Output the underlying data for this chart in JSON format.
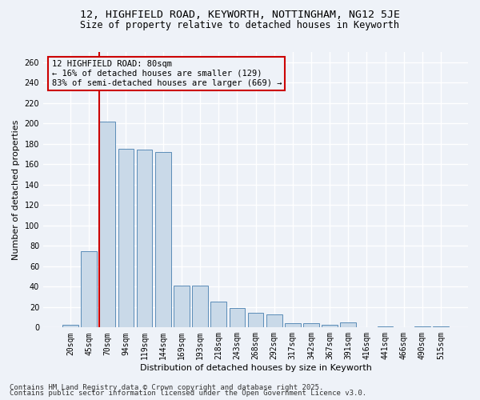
{
  "title_line1": "12, HIGHFIELD ROAD, KEYWORTH, NOTTINGHAM, NG12 5JE",
  "title_line2": "Size of property relative to detached houses in Keyworth",
  "xlabel": "Distribution of detached houses by size in Keyworth",
  "ylabel": "Number of detached properties",
  "bar_labels": [
    "20sqm",
    "45sqm",
    "70sqm",
    "94sqm",
    "119sqm",
    "144sqm",
    "169sqm",
    "193sqm",
    "218sqm",
    "243sqm",
    "268sqm",
    "292sqm",
    "317sqm",
    "342sqm",
    "367sqm",
    "391sqm",
    "416sqm",
    "441sqm",
    "466sqm",
    "490sqm",
    "515sqm"
  ],
  "bar_values": [
    3,
    75,
    202,
    175,
    174,
    172,
    41,
    41,
    25,
    19,
    14,
    13,
    4,
    4,
    3,
    5,
    0,
    1,
    0,
    1,
    1
  ],
  "bar_color": "#c9d9e8",
  "bar_edge_color": "#5b8db8",
  "bg_color": "#eef2f8",
  "grid_color": "#ffffff",
  "property_bar_index": 2,
  "vline_color": "#cc0000",
  "annotation_line1": "12 HIGHFIELD ROAD: 80sqm",
  "annotation_line2": "← 16% of detached houses are smaller (129)",
  "annotation_line3": "83% of semi-detached houses are larger (669) →",
  "annotation_box_color": "#cc0000",
  "annotation_text_color": "#000000",
  "ylim": [
    0,
    270
  ],
  "yticks": [
    0,
    20,
    40,
    60,
    80,
    100,
    120,
    140,
    160,
    180,
    200,
    220,
    240,
    260
  ],
  "footer_line1": "Contains HM Land Registry data © Crown copyright and database right 2025.",
  "footer_line2": "Contains public sector information licensed under the Open Government Licence v3.0.",
  "title_fontsize": 9.5,
  "subtitle_fontsize": 8.5,
  "axis_label_fontsize": 8,
  "tick_fontsize": 7,
  "annotation_fontsize": 7.5,
  "footer_fontsize": 6.5
}
